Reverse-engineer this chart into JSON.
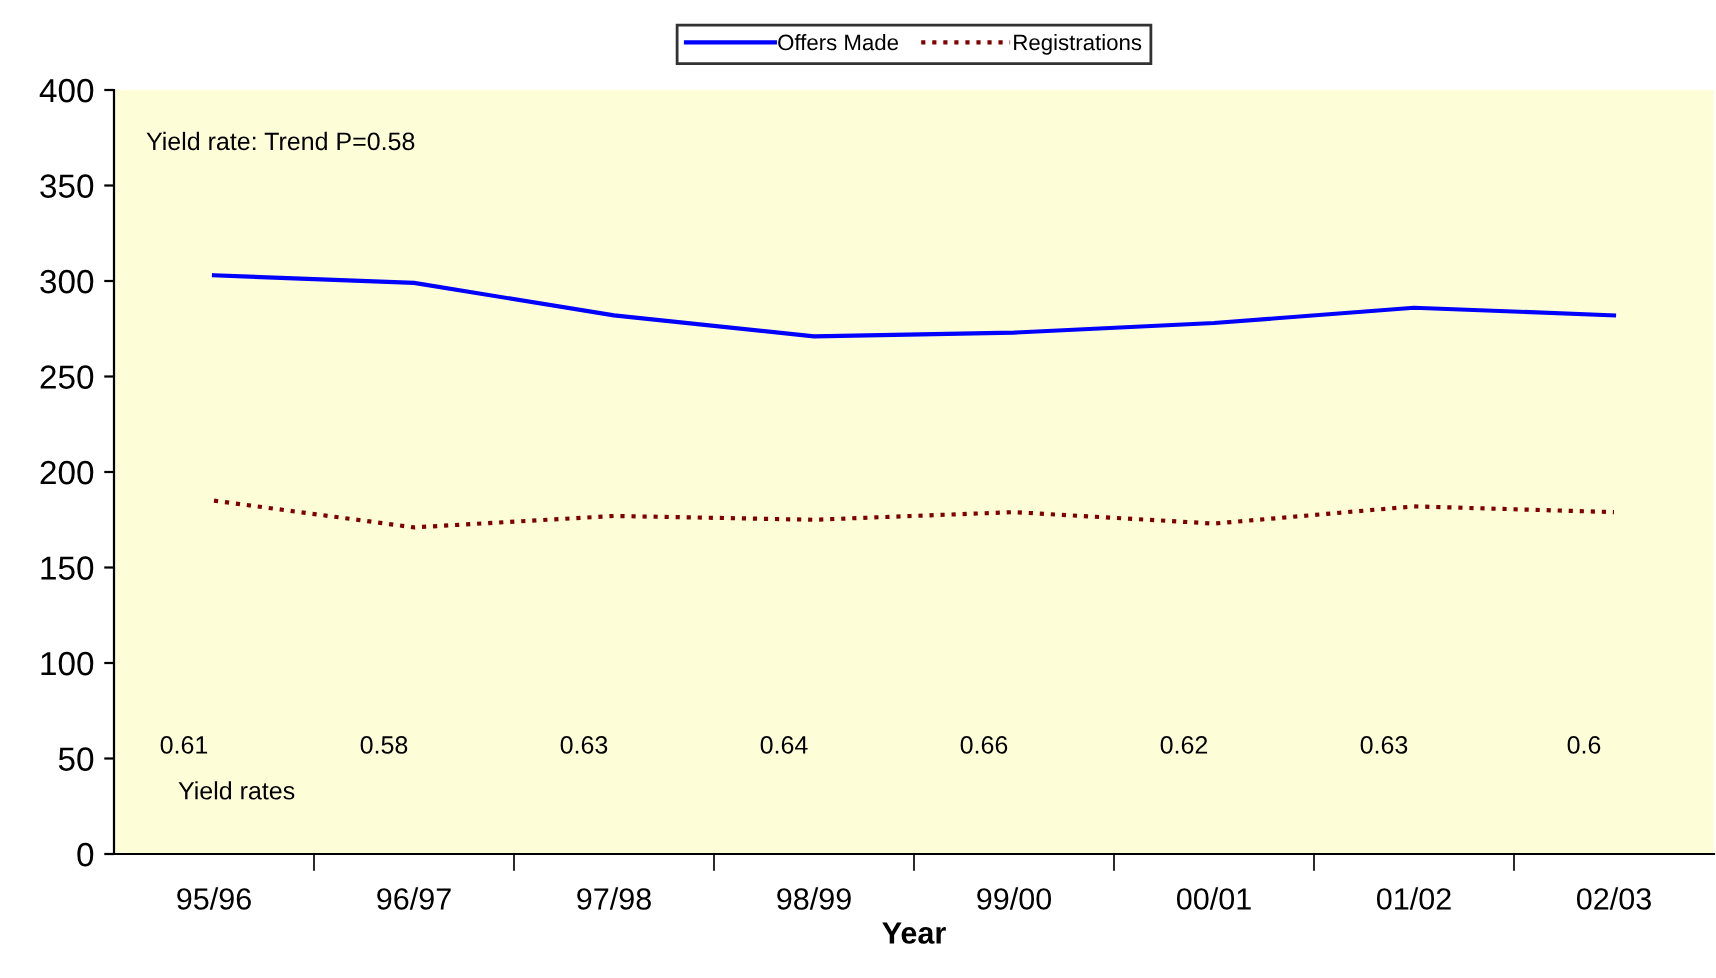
{
  "chart_data": {
    "type": "line",
    "xlabel": "Year",
    "categories": [
      "95/96",
      "96/97",
      "97/98",
      "98/99",
      "99/00",
      "00/01",
      "01/02",
      "02/03"
    ],
    "series": [
      {
        "name": "Offers Made",
        "color": "#0000ff",
        "line_style": "solid",
        "values": [
          303,
          299,
          282,
          271,
          273,
          278,
          286,
          282
        ]
      },
      {
        "name": "Registrations",
        "color": "#800000",
        "line_style": "dotted",
        "values": [
          185,
          171,
          177,
          175,
          179,
          173,
          182,
          179
        ]
      }
    ],
    "ylim": [
      0,
      400
    ],
    "yticks": [
      0,
      50,
      100,
      150,
      200,
      250,
      300,
      350,
      400
    ],
    "grid": false,
    "legend": "top",
    "marker": "none",
    "annotations": [
      "Yield rate: Trend P=0.58",
      "Yield rates",
      "0.61",
      "0.58",
      "0.63",
      "0.64",
      "0.66",
      "0.62",
      "0.63",
      "0.6"
    ]
  }
}
